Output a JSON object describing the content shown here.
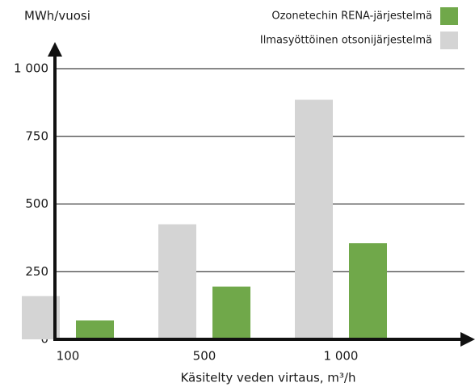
{
  "chart_data": {
    "type": "bar",
    "y_label": "MWh/vuosi",
    "x_label": "Käsitelty veden virtaus, m³/h",
    "categories": [
      "100",
      "500",
      "1 000"
    ],
    "series": [
      {
        "name": "Ozonetechin RENA-järjestelmä",
        "color": "#70a84a",
        "values": [
          70,
          195,
          355
        ]
      },
      {
        "name": "Ilmasyöttöinen otsonijärjestelmä",
        "color": "#d4d4d4",
        "values": [
          160,
          425,
          885
        ]
      }
    ],
    "ylim": [
      0,
      1000
    ],
    "yticks": [
      0,
      250,
      500,
      750,
      {
        "value": 1000,
        "label": "1 000"
      }
    ],
    "grid": true,
    "legend": "top-right"
  }
}
